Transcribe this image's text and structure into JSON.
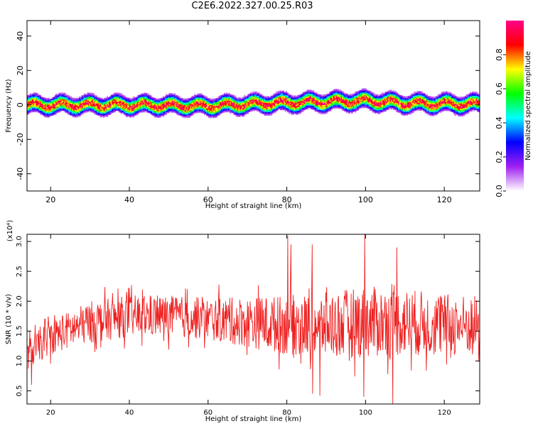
{
  "title": "C2E6.2022.327.00.25.R03",
  "chart_data": [
    {
      "type": "heatmap",
      "xlabel": "Height of straight line (km)",
      "ylabel": "Frequency (Hz)",
      "xlim": [
        14,
        129
      ],
      "ylim": [
        -50,
        49
      ],
      "xticks": [
        20,
        40,
        60,
        80,
        100,
        120
      ],
      "yticks": [
        -40,
        -20,
        0,
        20,
        40
      ],
      "colorbar": {
        "label": "Normalized spectral amplitude",
        "range": [
          0.0,
          1.0
        ],
        "ticks": [
          "0.0",
          "0.2",
          "0.4",
          "0.6",
          "0.8"
        ],
        "colors": [
          "#ffffff",
          "#a020f0",
          "#0000ff",
          "#00ffff",
          "#00ff00",
          "#ffff00",
          "#ff0000",
          "#ff0088"
        ]
      },
      "band": {
        "center_freq_hz": [
          {
            "height_km": 14,
            "freq": 0.0
          },
          {
            "height_km": 40,
            "freq": 0.0
          },
          {
            "height_km": 60,
            "freq": -0.5
          },
          {
            "height_km": 75,
            "freq": 1.0
          },
          {
            "height_km": 90,
            "freq": 2.0
          },
          {
            "height_km": 100,
            "freq": 2.5
          },
          {
            "height_km": 110,
            "freq": 1.0
          },
          {
            "height_km": 129,
            "freq": 0.5
          }
        ],
        "half_width_hz": 4
      }
    },
    {
      "type": "line",
      "xlabel": "Height of straight line (km)",
      "ylabel": "SNR (10 * v/v)",
      "y_multiplier": "(x10⁴)",
      "xlim": [
        14,
        129
      ],
      "ylim": [
        0.28,
        3.12
      ],
      "xticks": [
        20,
        40,
        60,
        80,
        100,
        120
      ],
      "yticks": [
        "0.5",
        "1.0",
        "1.5",
        "2.0",
        "2.5",
        "3.0"
      ],
      "color": "#ee2222",
      "trend": [
        {
          "x": 14,
          "y": 1.1
        },
        {
          "x": 20,
          "y": 1.4
        },
        {
          "x": 30,
          "y": 1.65
        },
        {
          "x": 40,
          "y": 1.75
        },
        {
          "x": 50,
          "y": 1.75
        },
        {
          "x": 60,
          "y": 1.7
        },
        {
          "x": 70,
          "y": 1.65
        },
        {
          "x": 80,
          "y": 1.6
        },
        {
          "x": 90,
          "y": 1.6
        },
        {
          "x": 100,
          "y": 1.65
        },
        {
          "x": 110,
          "y": 1.65
        },
        {
          "x": 120,
          "y": 1.6
        },
        {
          "x": 129,
          "y": 1.6
        }
      ],
      "amplitude": [
        {
          "x": 14,
          "a": 0.25
        },
        {
          "x": 30,
          "a": 0.35
        },
        {
          "x": 60,
          "a": 0.35
        },
        {
          "x": 80,
          "a": 0.5
        },
        {
          "x": 100,
          "a": 0.6
        },
        {
          "x": 129,
          "a": 0.5
        }
      ],
      "peaks": [
        {
          "x": 80.2,
          "y": 3.1
        },
        {
          "x": 81.0,
          "y": 2.95
        },
        {
          "x": 86.5,
          "y": 2.95
        },
        {
          "x": 99.8,
          "y": 3.12
        },
        {
          "x": 108.0,
          "y": 2.9
        },
        {
          "x": 86.6,
          "y": 0.45
        },
        {
          "x": 88.4,
          "y": 0.42
        },
        {
          "x": 99.6,
          "y": 0.4
        },
        {
          "x": 106.9,
          "y": 0.28
        },
        {
          "x": 15.2,
          "y": 0.6
        }
      ]
    }
  ]
}
